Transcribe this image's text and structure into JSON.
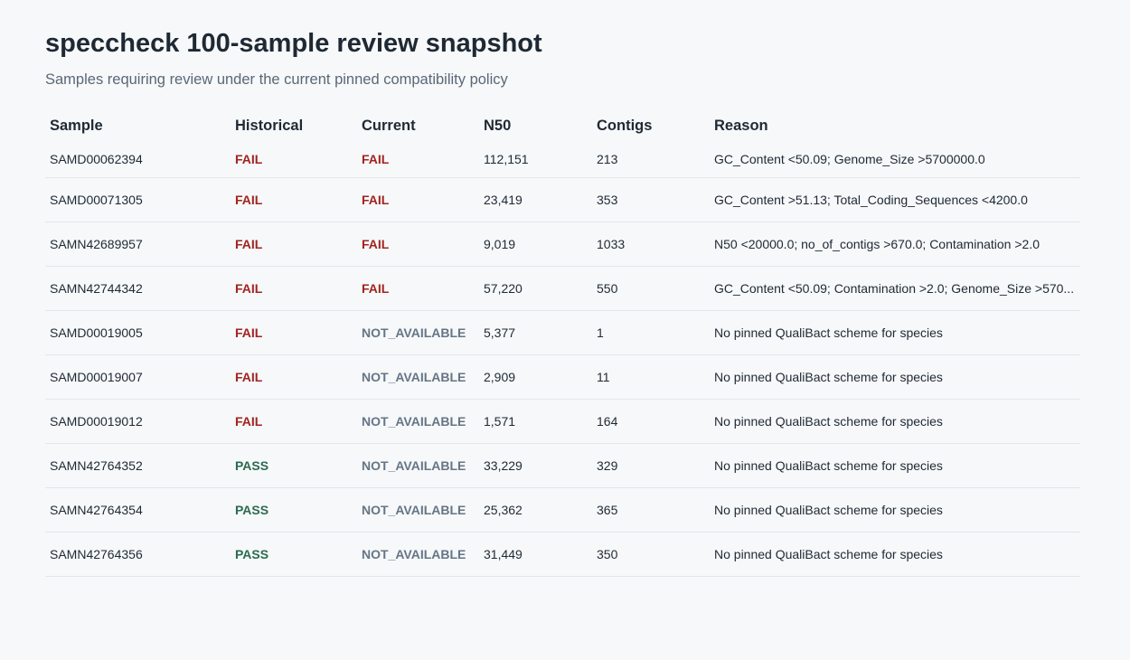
{
  "header": {
    "title": "speccheck 100-sample review snapshot",
    "subtitle": "Samples requiring review under the current pinned compatibility policy"
  },
  "table": {
    "columns": [
      "Sample",
      "Historical",
      "Current",
      "N50",
      "Contigs",
      "Reason"
    ],
    "rows": [
      {
        "sample": "SAMD00062394",
        "historical": "FAIL",
        "current": "FAIL",
        "n50": "112,151",
        "contigs": "213",
        "reason": "GC_Content <50.09; Genome_Size >5700000.0"
      },
      {
        "sample": "SAMD00071305",
        "historical": "FAIL",
        "current": "FAIL",
        "n50": "23,419",
        "contigs": "353",
        "reason": "GC_Content >51.13; Total_Coding_Sequences <4200.0"
      },
      {
        "sample": "SAMN42689957",
        "historical": "FAIL",
        "current": "FAIL",
        "n50": "9,019",
        "contigs": "1033",
        "reason": "N50 <20000.0; no_of_contigs >670.0; Contamination >2.0"
      },
      {
        "sample": "SAMN42744342",
        "historical": "FAIL",
        "current": "FAIL",
        "n50": "57,220",
        "contigs": "550",
        "reason": "GC_Content <50.09; Contamination >2.0; Genome_Size >570..."
      },
      {
        "sample": "SAMD00019005",
        "historical": "FAIL",
        "current": "NOT_AVAILABLE",
        "n50": "5,377",
        "contigs": "1",
        "reason": "No pinned QualiBact scheme for species"
      },
      {
        "sample": "SAMD00019007",
        "historical": "FAIL",
        "current": "NOT_AVAILABLE",
        "n50": "2,909",
        "contigs": "11",
        "reason": "No pinned QualiBact scheme for species"
      },
      {
        "sample": "SAMD00019012",
        "historical": "FAIL",
        "current": "NOT_AVAILABLE",
        "n50": "1,571",
        "contigs": "164",
        "reason": "No pinned QualiBact scheme for species"
      },
      {
        "sample": "SAMN42764352",
        "historical": "PASS",
        "current": "NOT_AVAILABLE",
        "n50": "33,229",
        "contigs": "329",
        "reason": "No pinned QualiBact scheme for species"
      },
      {
        "sample": "SAMN42764354",
        "historical": "PASS",
        "current": "NOT_AVAILABLE",
        "n50": "25,362",
        "contigs": "365",
        "reason": "No pinned QualiBact scheme for species"
      },
      {
        "sample": "SAMN42764356",
        "historical": "PASS",
        "current": "NOT_AVAILABLE",
        "n50": "31,449",
        "contigs": "350",
        "reason": "No pinned QualiBact scheme for species"
      }
    ]
  },
  "colors": {
    "fail": "#a3231f",
    "pass": "#2a6b4e",
    "not_available": "#667585"
  }
}
